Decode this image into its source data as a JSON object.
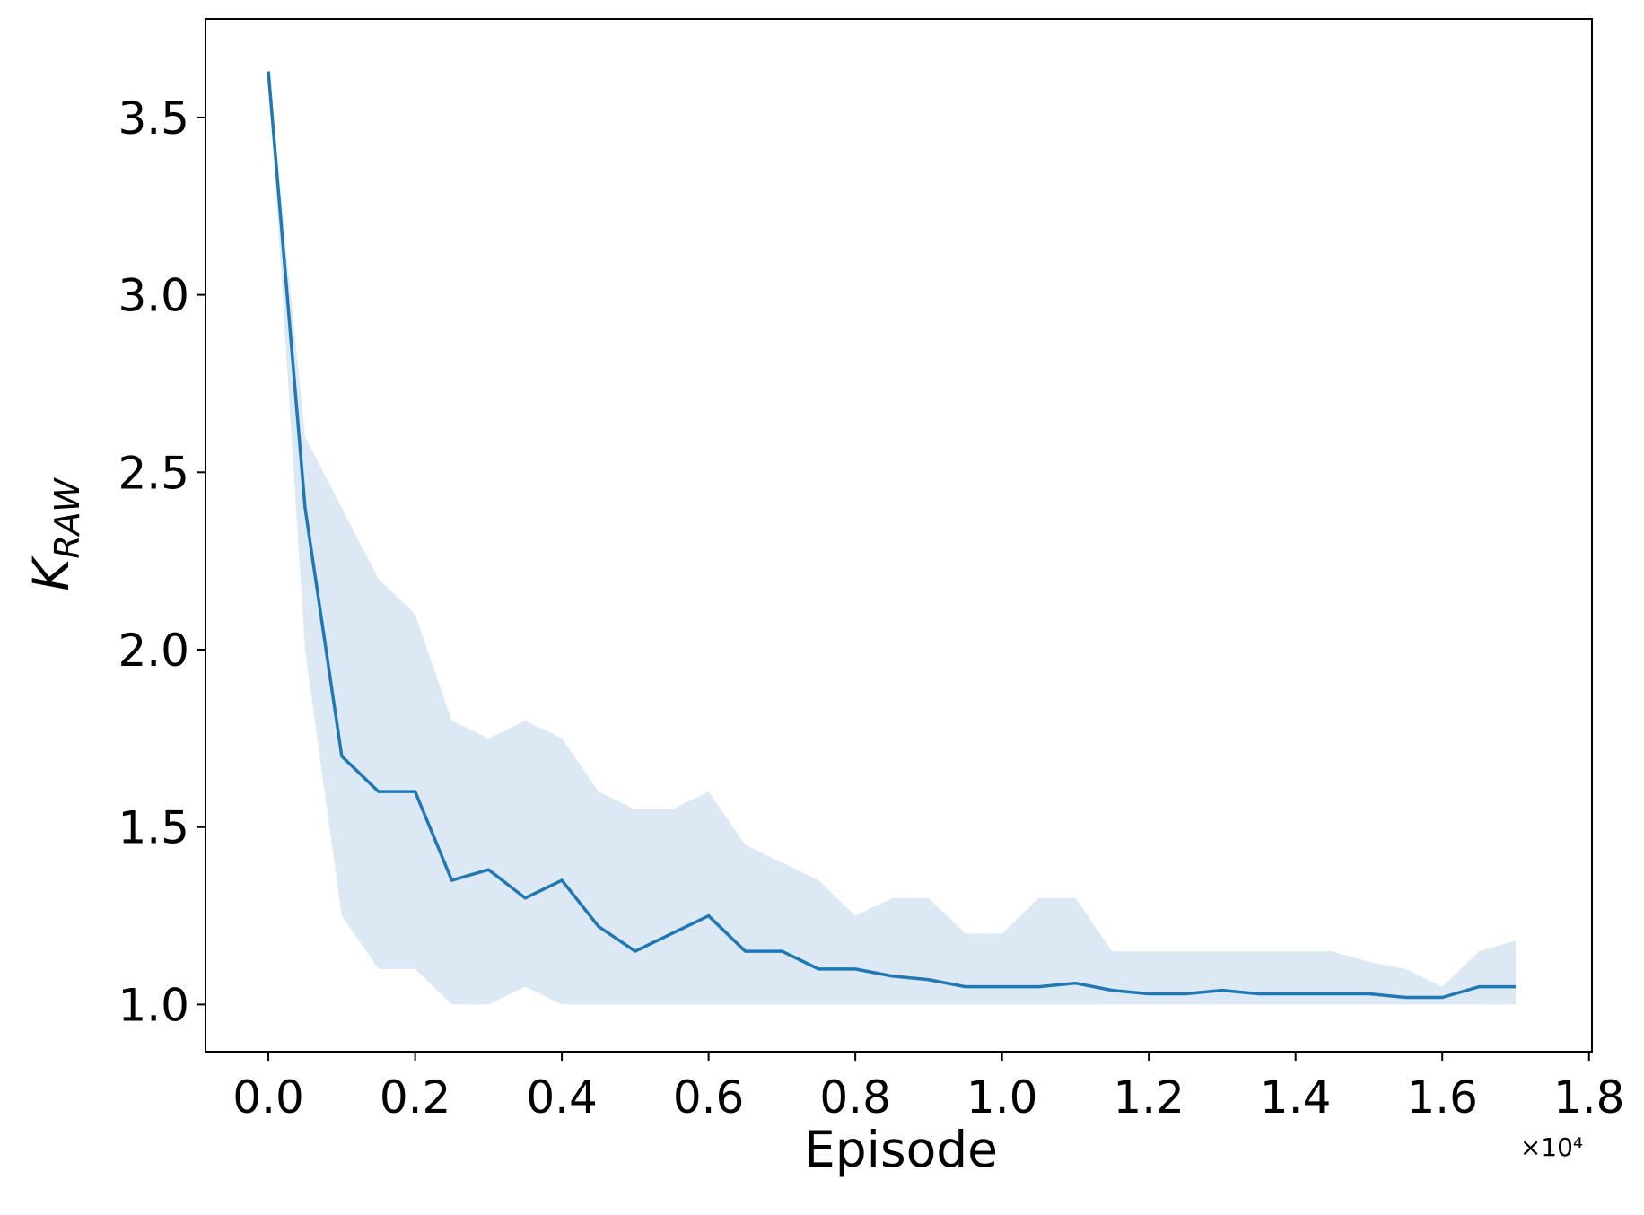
{
  "chart_data": {
    "type": "line",
    "xlabel": "Episode",
    "ylabel": "K",
    "ylabel_sub": "RAW",
    "x_offset_label": "×10⁴",
    "x": [
      0.0,
      0.05,
      0.1,
      0.15,
      0.2,
      0.25,
      0.3,
      0.35,
      0.4,
      0.45,
      0.5,
      0.55,
      0.6,
      0.65,
      0.7,
      0.75,
      0.8,
      0.85,
      0.9,
      0.95,
      1.0,
      1.05,
      1.1,
      1.15,
      1.2,
      1.25,
      1.3,
      1.35,
      1.4,
      1.45,
      1.5,
      1.55,
      1.6,
      1.65,
      1.7
    ],
    "series": [
      {
        "color": "#1f77b4",
        "values": [
          3.63,
          2.4,
          1.7,
          1.6,
          1.6,
          1.35,
          1.38,
          1.3,
          1.35,
          1.22,
          1.15,
          1.2,
          1.25,
          1.15,
          1.15,
          1.1,
          1.1,
          1.08,
          1.07,
          1.05,
          1.05,
          1.05,
          1.06,
          1.04,
          1.03,
          1.03,
          1.04,
          1.03,
          1.03,
          1.03,
          1.03,
          1.02,
          1.02,
          1.05,
          1.05
        ]
      }
    ],
    "band": {
      "color": "#dce9f4",
      "upper": [
        3.63,
        2.6,
        2.4,
        2.2,
        2.1,
        1.8,
        1.75,
        1.8,
        1.75,
        1.6,
        1.55,
        1.55,
        1.6,
        1.45,
        1.4,
        1.35,
        1.25,
        1.3,
        1.3,
        1.2,
        1.2,
        1.3,
        1.3,
        1.15,
        1.15,
        1.15,
        1.15,
        1.15,
        1.15,
        1.15,
        1.12,
        1.1,
        1.05,
        1.15,
        1.18
      ],
      "lower": [
        3.63,
        2.0,
        1.25,
        1.1,
        1.1,
        1.0,
        1.0,
        1.05,
        1.0,
        1.0,
        1.0,
        1.0,
        1.0,
        1.0,
        1.0,
        1.0,
        1.0,
        1.0,
        1.0,
        1.0,
        1.0,
        1.0,
        1.0,
        1.0,
        1.0,
        1.0,
        1.0,
        1.0,
        1.0,
        1.0,
        1.0,
        1.0,
        1.0,
        1.0,
        1.0
      ]
    },
    "xlim": [
      -0.0857,
      1.804
    ],
    "ylim": [
      0.867,
      3.778
    ],
    "xticks": [
      {
        "value": 0,
        "label": "0.0"
      },
      0.2,
      0.4,
      0.6,
      0.8,
      {
        "value": 1,
        "label": "1.0"
      },
      1.2,
      1.4,
      1.6,
      1.8
    ],
    "yticks": [
      {
        "value": 1,
        "label": "1.0"
      },
      1.5,
      {
        "value": 2,
        "label": "2.0"
      },
      2.5,
      {
        "value": 3,
        "label": "3.0"
      },
      3.5
    ]
  }
}
